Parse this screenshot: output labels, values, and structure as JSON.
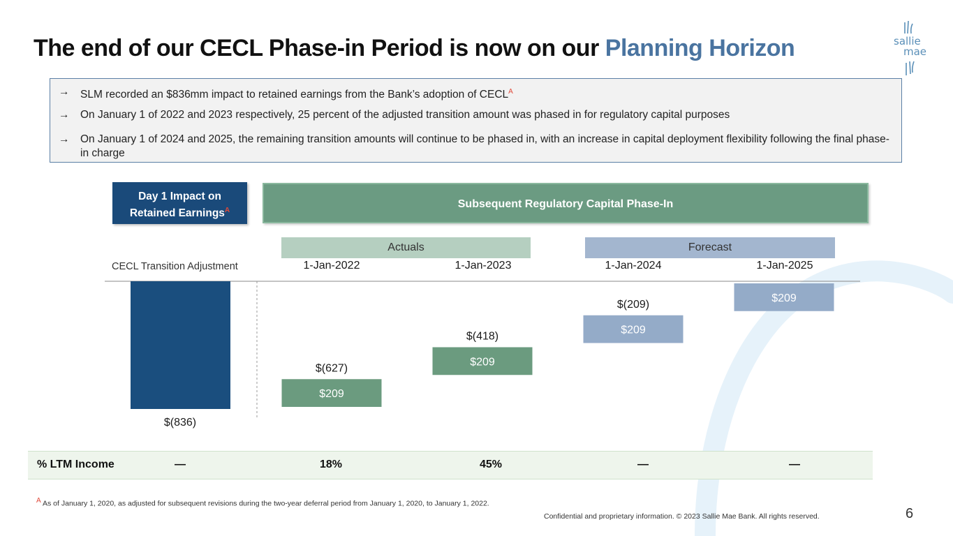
{
  "title": {
    "main": "The end of our CECL Phase-in Period is now on our ",
    "highlight": "Planning Horizon"
  },
  "logo": {
    "line1": "sallie",
    "line2": "mae"
  },
  "bullets": [
    {
      "text": "SLM recorded an $836mm impact to retained earnings from the Bank’s adoption of CECL",
      "sup": "A"
    },
    {
      "text": "On January 1 of 2022 and 2023 respectively, 25 percent of the adjusted transition amount was phased in for regulatory capital purposes",
      "sup": ""
    },
    {
      "text": "On January 1 of 2024 and 2025, the remaining transition amounts will continue to be phased in, with an increase in capital deployment flexibility following the final phase-in charge",
      "sup": ""
    }
  ],
  "bullet_arrow": "→",
  "headers": {
    "day1_line1": "Day 1 Impact on",
    "day1_line2": "Retained Earnings",
    "day1_sup": "A",
    "subsequent": "Subsequent Regulatory Capital Phase-In"
  },
  "bands": {
    "actuals": "Actuals",
    "forecast": "Forecast"
  },
  "chart_data": {
    "type": "bar",
    "subtype": "waterfall",
    "categories": [
      "CECL Transition Adjustment",
      "1-Jan-2022",
      "1-Jan-2023",
      "1-Jan-2024",
      "1-Jan-2025"
    ],
    "initial": {
      "value": -836,
      "label": "$(836)"
    },
    "steps": [
      {
        "value": 209,
        "label": "$209",
        "remaining": -627,
        "remaining_label": "$(627)",
        "status": "actual"
      },
      {
        "value": 209,
        "label": "$209",
        "remaining": -418,
        "remaining_label": "$(418)",
        "status": "actual"
      },
      {
        "value": 209,
        "label": "$209",
        "remaining": -209,
        "remaining_label": "$(209)",
        "status": "forecast"
      },
      {
        "value": 209,
        "label": "$209",
        "remaining": 0,
        "remaining_label": "",
        "status": "forecast"
      }
    ],
    "ylim": [
      -836,
      0
    ],
    "colors": {
      "initial": "#1a4e7e",
      "actual": "#6b9b7f",
      "forecast": "#94abc8"
    }
  },
  "ltm": {
    "label": "% LTM Income",
    "values": [
      "—",
      "18%",
      "45%",
      "—",
      "—"
    ]
  },
  "footnote": {
    "sup": "A",
    "text": " As of January 1, 2020, as adjusted for subsequent revisions during the two-year deferral period from January 1, 2020, to January 1, 2022."
  },
  "confidential": "Confidential and proprietary information. © 2023 Sallie Mae Bank. All rights reserved.",
  "page_number": "6",
  "decor_color": "#e6f2fa"
}
